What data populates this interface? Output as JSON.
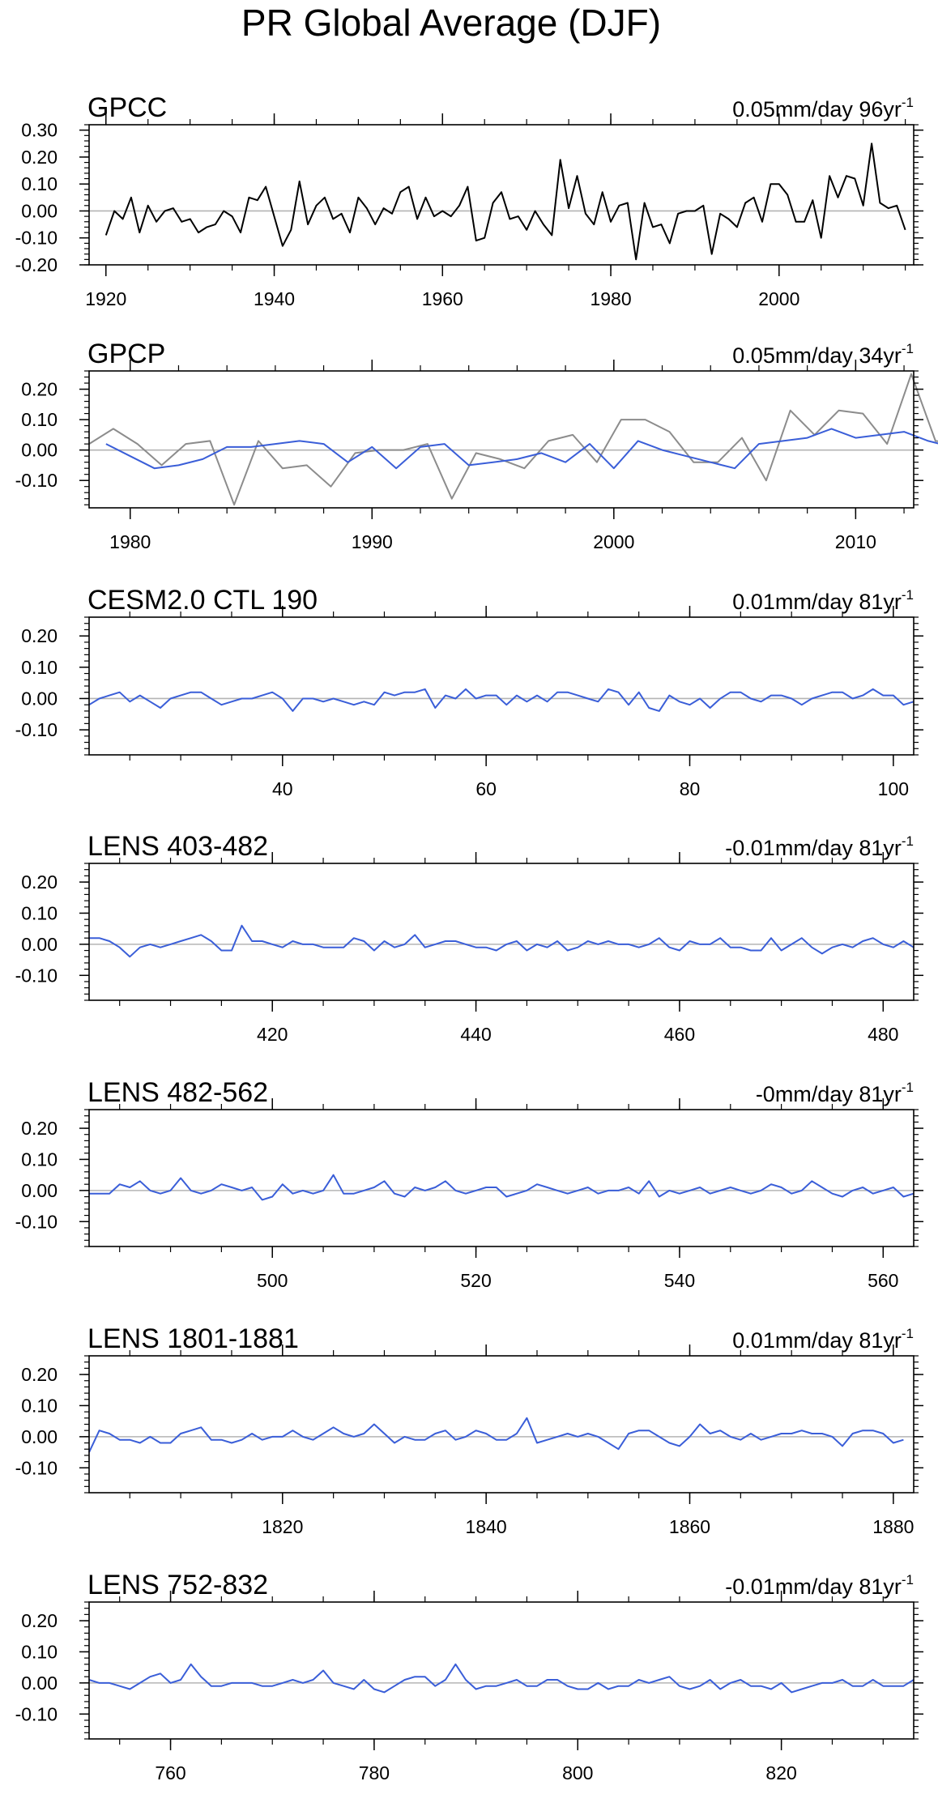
{
  "page": {
    "title": "PR Global Average (DJF)"
  },
  "style": {
    "black_line": "#000000",
    "gray_line": "#8c8c8c",
    "blue_line": "#3a5ed8",
    "zero_line": "#b4b4b4"
  },
  "chart_data": [
    {
      "type": "line",
      "title": "GPCC",
      "trend_text": "0.05mm/day 96yr",
      "trend_sup": "-1",
      "xlim": [
        1918,
        2016
      ],
      "ylim": [
        -0.2,
        0.32
      ],
      "yticks": [
        -0.2,
        -0.1,
        0.0,
        0.1,
        0.2,
        0.3
      ],
      "ytick_labels": [
        "-0.20",
        "-0.10",
        "0.00",
        "0.10",
        "0.20",
        "0.30"
      ],
      "xticks": [
        1920,
        1940,
        1960,
        1980,
        2000
      ],
      "xtick_labels": [
        "1920",
        "1940",
        "1960",
        "1980",
        "2000"
      ],
      "grid": false,
      "series": [
        {
          "color": "#000000",
          "x0": 1920,
          "dx": 1,
          "values": [
            -0.09,
            0.0,
            -0.03,
            0.05,
            -0.08,
            0.02,
            -0.04,
            0.0,
            0.01,
            -0.04,
            -0.03,
            -0.08,
            -0.06,
            -0.05,
            0.0,
            -0.02,
            -0.08,
            0.05,
            0.04,
            0.09,
            -0.02,
            -0.13,
            -0.07,
            0.11,
            -0.05,
            0.02,
            0.05,
            -0.03,
            -0.01,
            -0.08,
            0.05,
            0.01,
            -0.05,
            0.01,
            -0.01,
            0.07,
            0.09,
            -0.03,
            0.05,
            -0.02,
            0.0,
            -0.02,
            0.02,
            0.09,
            -0.11,
            -0.1,
            0.03,
            0.07,
            -0.03,
            -0.02,
            -0.07,
            0.0,
            -0.05,
            -0.09,
            0.19,
            0.01,
            0.13,
            -0.01,
            -0.05,
            0.07,
            -0.04,
            0.02,
            0.03,
            -0.18,
            0.03,
            -0.06,
            -0.05,
            -0.12,
            -0.01,
            0.0,
            0.0,
            0.02,
            -0.16,
            -0.01,
            -0.03,
            -0.06,
            0.03,
            0.05,
            -0.04,
            0.1,
            0.1,
            0.06,
            -0.04,
            -0.04,
            0.04,
            -0.1,
            0.13,
            0.05,
            0.13,
            0.12,
            0.02,
            0.25,
            0.03,
            0.01,
            0.02,
            -0.07
          ]
        }
      ]
    },
    {
      "type": "line",
      "title": "GPCP",
      "trend_text": "0.05mm/day 34yr",
      "trend_sup": "-1",
      "xlim": [
        1978.3,
        2012.4
      ],
      "ylim": [
        -0.19,
        0.26
      ],
      "yticks": [
        -0.1,
        0.0,
        0.1,
        0.2
      ],
      "ytick_labels": [
        "-0.10",
        "0.00",
        "0.10",
        "0.20"
      ],
      "xticks": [
        1980,
        1990,
        2000,
        2010
      ],
      "xtick_labels": [
        "1980",
        "1990",
        "2000",
        "2010"
      ],
      "grid": false,
      "series": [
        {
          "color": "#8c8c8c",
          "x0": 1978.3,
          "dx": 1,
          "values": [
            0.02,
            0.07,
            0.02,
            -0.05,
            0.02,
            0.03,
            -0.18,
            0.03,
            -0.06,
            -0.05,
            -0.12,
            -0.01,
            0.0,
            0.0,
            0.02,
            -0.16,
            -0.01,
            -0.03,
            -0.06,
            0.03,
            0.05,
            -0.04,
            0.1,
            0.1,
            0.06,
            -0.04,
            -0.04,
            0.04,
            -0.1,
            0.13,
            0.05,
            0.13,
            0.12,
            0.02,
            0.25,
            0.03,
            0.02
          ]
        },
        {
          "color": "#3a5ed8",
          "x0": 1979,
          "dx": 1,
          "values": [
            0.02,
            -0.02,
            -0.06,
            -0.05,
            -0.03,
            0.01,
            0.01,
            0.02,
            0.03,
            0.02,
            -0.04,
            0.01,
            -0.06,
            0.01,
            0.02,
            -0.05,
            -0.04,
            -0.03,
            -0.01,
            -0.04,
            0.02,
            -0.06,
            0.03,
            0.0,
            -0.02,
            -0.04,
            -0.06,
            0.02,
            0.03,
            0.04,
            0.07,
            0.04,
            0.05,
            0.06,
            0.03,
            0.01,
            0.06,
            0.01,
            -0.02
          ]
        }
      ]
    },
    {
      "type": "line",
      "title": "CESM2.0 CTL 190",
      "trend_text": "0.01mm/day 81yr",
      "trend_sup": "-1",
      "xlim": [
        21,
        102
      ],
      "ylim": [
        -0.18,
        0.26
      ],
      "yticks": [
        -0.1,
        0.0,
        0.1,
        0.2
      ],
      "ytick_labels": [
        "-0.10",
        "0.00",
        "0.10",
        "0.20"
      ],
      "xticks": [
        40,
        60,
        80,
        100
      ],
      "xtick_labels": [
        "40",
        "60",
        "80",
        "100"
      ],
      "grid": false,
      "series": [
        {
          "color": "#3a5ed8",
          "x0": 21,
          "dx": 1,
          "values": [
            -0.02,
            0.0,
            0.01,
            0.02,
            -0.01,
            0.01,
            -0.01,
            -0.03,
            0.0,
            0.01,
            0.02,
            0.02,
            0.0,
            -0.02,
            -0.01,
            0.0,
            0.0,
            0.01,
            0.02,
            0.0,
            -0.04,
            0.0,
            0.0,
            -0.01,
            0.0,
            -0.01,
            -0.02,
            -0.01,
            -0.02,
            0.02,
            0.01,
            0.02,
            0.02,
            0.03,
            -0.03,
            0.01,
            0.0,
            0.03,
            0.0,
            0.01,
            0.01,
            -0.02,
            0.01,
            -0.01,
            0.01,
            -0.01,
            0.02,
            0.02,
            0.01,
            0.0,
            -0.01,
            0.03,
            0.02,
            -0.02,
            0.02,
            -0.03,
            -0.04,
            0.01,
            -0.01,
            -0.02,
            0.0,
            -0.03,
            0.0,
            0.02,
            0.02,
            0.0,
            -0.01,
            0.01,
            0.01,
            0.0,
            -0.02,
            0.0,
            0.01,
            0.02,
            0.02,
            0.0,
            0.01,
            0.03,
            0.01,
            0.01,
            -0.02,
            -0.01
          ]
        }
      ]
    },
    {
      "type": "line",
      "title": "LENS 403-482",
      "trend_text": "-0.01mm/day 81yr",
      "trend_sup": "-1",
      "xlim": [
        402,
        483
      ],
      "ylim": [
        -0.18,
        0.26
      ],
      "yticks": [
        -0.1,
        0.0,
        0.1,
        0.2
      ],
      "ytick_labels": [
        "-0.10",
        "0.00",
        "0.10",
        "0.20"
      ],
      "xticks": [
        420,
        440,
        460,
        480
      ],
      "xtick_labels": [
        "420",
        "440",
        "460",
        "480"
      ],
      "grid": false,
      "series": [
        {
          "color": "#3a5ed8",
          "x0": 402,
          "dx": 1,
          "values": [
            0.02,
            0.02,
            0.01,
            -0.01,
            -0.04,
            -0.01,
            0.0,
            -0.01,
            0.0,
            0.01,
            0.02,
            0.03,
            0.01,
            -0.02,
            -0.02,
            0.06,
            0.01,
            0.01,
            0.0,
            -0.01,
            0.01,
            0.0,
            0.0,
            -0.01,
            -0.01,
            -0.01,
            0.02,
            0.01,
            -0.02,
            0.01,
            -0.01,
            0.0,
            0.03,
            -0.01,
            0.0,
            0.01,
            0.01,
            0.0,
            -0.01,
            -0.01,
            -0.02,
            0.0,
            0.01,
            -0.02,
            0.0,
            -0.01,
            0.01,
            -0.02,
            -0.01,
            0.01,
            0.0,
            0.01,
            0.0,
            0.0,
            -0.01,
            0.0,
            0.02,
            -0.01,
            -0.02,
            0.01,
            0.0,
            0.0,
            0.02,
            -0.01,
            -0.01,
            -0.02,
            -0.02,
            0.02,
            -0.02,
            0.0,
            0.02,
            -0.01,
            -0.03,
            -0.01,
            0.0,
            -0.01,
            0.01,
            0.02,
            0.0,
            -0.01,
            0.01,
            -0.01
          ]
        }
      ]
    },
    {
      "type": "line",
      "title": "LENS 482-562",
      "trend_text": "-0mm/day 81yr",
      "trend_sup": "-1",
      "xlim": [
        482,
        563
      ],
      "ylim": [
        -0.18,
        0.26
      ],
      "yticks": [
        -0.1,
        0.0,
        0.1,
        0.2
      ],
      "ytick_labels": [
        "-0.10",
        "0.00",
        "0.10",
        "0.20"
      ],
      "xticks": [
        500,
        520,
        540,
        560
      ],
      "xtick_labels": [
        "500",
        "520",
        "540",
        "560"
      ],
      "grid": false,
      "series": [
        {
          "color": "#3a5ed8",
          "x0": 482,
          "dx": 1,
          "values": [
            -0.01,
            -0.01,
            -0.01,
            0.02,
            0.01,
            0.03,
            0.0,
            -0.01,
            0.0,
            0.04,
            0.0,
            -0.01,
            0.0,
            0.02,
            0.01,
            0.0,
            0.01,
            -0.03,
            -0.02,
            0.02,
            -0.01,
            0.0,
            -0.01,
            0.0,
            0.05,
            -0.01,
            -0.01,
            0.0,
            0.01,
            0.03,
            -0.01,
            -0.02,
            0.01,
            0.0,
            0.01,
            0.03,
            0.0,
            -0.01,
            0.0,
            0.01,
            0.01,
            -0.02,
            -0.01,
            0.0,
            0.02,
            0.01,
            0.0,
            -0.01,
            0.0,
            0.01,
            -0.01,
            0.0,
            0.0,
            0.01,
            -0.01,
            0.03,
            -0.02,
            0.0,
            -0.01,
            0.0,
            0.01,
            -0.01,
            0.0,
            0.01,
            0.0,
            -0.01,
            0.0,
            0.02,
            0.01,
            -0.01,
            0.0,
            0.03,
            0.01,
            -0.01,
            -0.02,
            0.0,
            0.01,
            -0.01,
            0.0,
            0.01,
            -0.02,
            -0.01
          ]
        }
      ]
    },
    {
      "type": "line",
      "title": "LENS 1801-1881",
      "trend_text": "0.01mm/day 81yr",
      "trend_sup": "-1",
      "xlim": [
        1801,
        1882
      ],
      "ylim": [
        -0.18,
        0.26
      ],
      "yticks": [
        -0.1,
        0.0,
        0.1,
        0.2
      ],
      "ytick_labels": [
        "-0.10",
        "0.00",
        "0.10",
        "0.20"
      ],
      "xticks": [
        1820,
        1840,
        1860,
        1880
      ],
      "xtick_labels": [
        "1820",
        "1840",
        "1860",
        "1880"
      ],
      "grid": false,
      "series": [
        {
          "color": "#3a5ed8",
          "x0": 1801,
          "dx": 1,
          "values": [
            -0.05,
            0.02,
            0.01,
            -0.01,
            -0.01,
            -0.02,
            0.0,
            -0.02,
            -0.02,
            0.01,
            0.02,
            0.03,
            -0.01,
            -0.01,
            -0.02,
            -0.01,
            0.01,
            -0.01,
            0.0,
            0.0,
            0.02,
            0.0,
            -0.01,
            0.01,
            0.03,
            0.01,
            0.0,
            0.01,
            0.04,
            0.01,
            -0.02,
            0.0,
            -0.01,
            -0.01,
            0.01,
            0.02,
            -0.01,
            0.0,
            0.02,
            0.01,
            -0.01,
            -0.01,
            0.01,
            0.06,
            -0.02,
            -0.01,
            0.0,
            0.01,
            0.0,
            0.01,
            0.0,
            -0.02,
            -0.04,
            0.01,
            0.02,
            0.02,
            0.0,
            -0.02,
            -0.03,
            0.0,
            0.04,
            0.01,
            0.02,
            0.0,
            -0.01,
            0.01,
            -0.01,
            0.0,
            0.01,
            0.01,
            0.02,
            0.01,
            0.01,
            0.0,
            -0.03,
            0.01,
            0.02,
            0.02,
            0.01,
            -0.02,
            -0.01
          ]
        }
      ]
    },
    {
      "type": "line",
      "title": "LENS 752-832",
      "trend_text": "-0.01mm/day 81yr",
      "trend_sup": "-1",
      "xlim": [
        752,
        833
      ],
      "ylim": [
        -0.18,
        0.26
      ],
      "yticks": [
        -0.1,
        0.0,
        0.1,
        0.2
      ],
      "ytick_labels": [
        "-0.10",
        "0.00",
        "0.10",
        "0.20"
      ],
      "xticks": [
        760,
        780,
        800,
        820
      ],
      "xtick_labels": [
        "760",
        "780",
        "800",
        "820"
      ],
      "grid": false,
      "series": [
        {
          "color": "#3a5ed8",
          "x0": 752,
          "dx": 1,
          "values": [
            0.01,
            0.0,
            0.0,
            -0.01,
            -0.02,
            0.0,
            0.02,
            0.03,
            0.0,
            0.01,
            0.06,
            0.02,
            -0.01,
            -0.01,
            0.0,
            0.0,
            0.0,
            -0.01,
            -0.01,
            0.0,
            0.01,
            0.0,
            0.01,
            0.04,
            0.0,
            -0.01,
            -0.02,
            0.01,
            -0.02,
            -0.03,
            -0.01,
            0.01,
            0.02,
            0.02,
            -0.01,
            0.01,
            0.06,
            0.01,
            -0.02,
            -0.01,
            -0.01,
            0.0,
            0.01,
            -0.01,
            -0.01,
            0.01,
            0.01,
            -0.01,
            -0.02,
            -0.02,
            0.0,
            -0.02,
            -0.01,
            -0.01,
            0.01,
            0.0,
            0.01,
            0.02,
            -0.01,
            -0.02,
            -0.01,
            0.01,
            -0.02,
            0.0,
            0.01,
            -0.01,
            -0.01,
            -0.02,
            0.0,
            -0.03,
            -0.02,
            -0.01,
            0.0,
            0.0,
            0.01,
            -0.01,
            -0.01,
            0.01,
            -0.01,
            -0.01,
            -0.01,
            0.01
          ]
        }
      ]
    }
  ]
}
